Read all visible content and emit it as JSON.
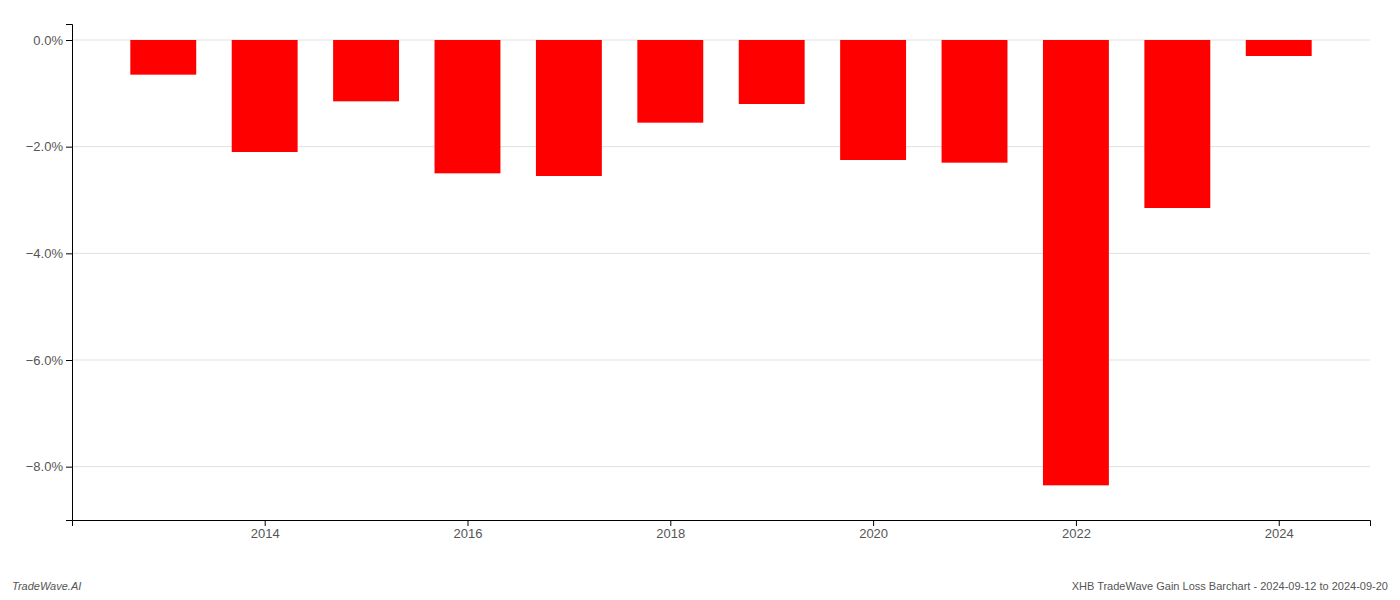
{
  "chart_data": {
    "type": "bar",
    "x": [
      2013,
      2014,
      2015,
      2016,
      2017,
      2018,
      2019,
      2020,
      2021,
      2022,
      2023,
      2024
    ],
    "values": [
      -0.65,
      -2.1,
      -1.15,
      -2.5,
      -2.55,
      -1.55,
      -1.2,
      -2.25,
      -2.3,
      -8.35,
      -3.15,
      -0.3
    ],
    "color": "#ff0000",
    "xlim": [
      2012.1,
      2024.9
    ],
    "xticks": [
      2014,
      2016,
      2018,
      2020,
      2022,
      2024
    ],
    "ylim": [
      -9.0,
      0.3
    ],
    "yticks": [
      {
        "value": 0.0,
        "label": "0.0%"
      },
      {
        "value": -2.0,
        "label": "−2.0%"
      },
      {
        "value": -4.0,
        "label": "−4.0%"
      },
      {
        "value": -6.0,
        "label": "−6.0%"
      },
      {
        "value": -8.0,
        "label": "−8.0%"
      }
    ],
    "grid": true,
    "annotations": [
      "TradeWave.AI",
      "XHB TradeWave Gain Loss Barchart - 2024-09-12 to 2024-09-20"
    ]
  }
}
